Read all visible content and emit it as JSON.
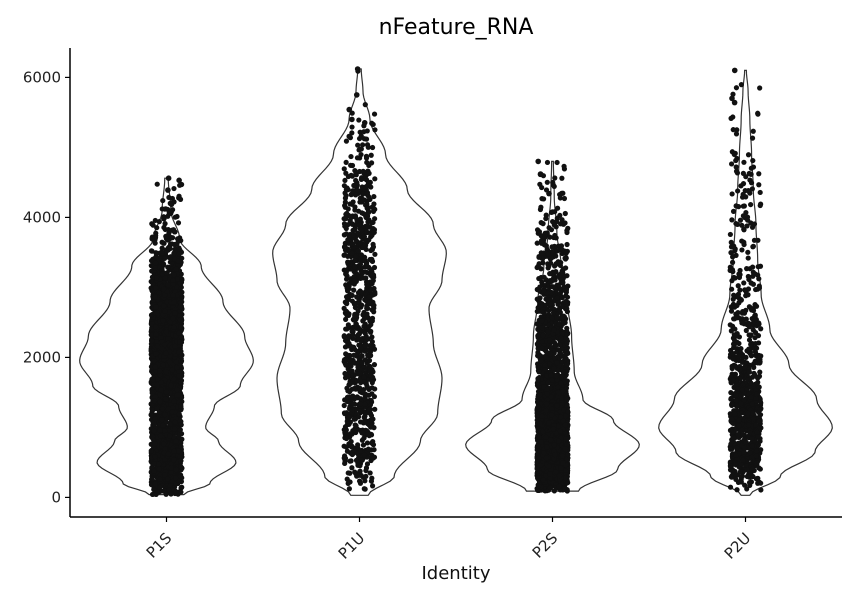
{
  "chart_data": {
    "type": "violin",
    "title": "nFeature_RNA",
    "xlabel": "Identity",
    "ylabel": "",
    "ylim": [
      -280,
      6420
    ],
    "y_ticks": [
      0,
      2000,
      4000,
      6000
    ],
    "y_tick_labels": [
      "0",
      "2000",
      "4000",
      "6000"
    ],
    "grid": false,
    "legend": "none",
    "colors": {
      "violin_stroke": "#333333",
      "point": "#111111",
      "axis": "#000000",
      "background": "#ffffff"
    },
    "categories": [
      "P1S",
      "P1U",
      "P2S",
      "P2U"
    ],
    "series": [
      {
        "category": "P1S",
        "range": [
          40,
          4560
        ],
        "density_profile": [
          [
            40,
            0.2
          ],
          [
            200,
            0.5
          ],
          [
            500,
            0.8
          ],
          [
            800,
            0.6
          ],
          [
            1000,
            0.45
          ],
          [
            1300,
            0.55
          ],
          [
            1600,
            0.85
          ],
          [
            1950,
            1.0
          ],
          [
            2300,
            0.9
          ],
          [
            2800,
            0.65
          ],
          [
            3300,
            0.4
          ],
          [
            3700,
            0.15
          ],
          [
            4100,
            0.05
          ],
          [
            4560,
            0.02
          ]
        ],
        "points": 2600,
        "outliers": [
          4560,
          4530,
          4390,
          4200
        ]
      },
      {
        "category": "P1U",
        "range": [
          30,
          6120
        ],
        "density_profile": [
          [
            30,
            0.1
          ],
          [
            300,
            0.4
          ],
          [
            800,
            0.7
          ],
          [
            1200,
            0.9
          ],
          [
            1700,
            0.95
          ],
          [
            2200,
            0.85
          ],
          [
            2700,
            0.8
          ],
          [
            3100,
            0.95
          ],
          [
            3500,
            1.0
          ],
          [
            3900,
            0.85
          ],
          [
            4400,
            0.55
          ],
          [
            4900,
            0.3
          ],
          [
            5400,
            0.12
          ],
          [
            5800,
            0.04
          ],
          [
            6120,
            0.02
          ]
        ],
        "points": 900,
        "outliers": [
          6120,
          5750,
          5540,
          5400
        ]
      },
      {
        "category": "P2S",
        "range": [
          90,
          4800
        ],
        "density_profile": [
          [
            90,
            0.3
          ],
          [
            400,
            0.75
          ],
          [
            750,
            1.0
          ],
          [
            1100,
            0.7
          ],
          [
            1400,
            0.35
          ],
          [
            1800,
            0.25
          ],
          [
            2300,
            0.22
          ],
          [
            2800,
            0.17
          ],
          [
            3300,
            0.1
          ],
          [
            3800,
            0.05
          ],
          [
            4300,
            0.02
          ],
          [
            4800,
            0.01
          ]
        ],
        "points": 2600,
        "outliers": [
          4800,
          4620,
          4340
        ]
      },
      {
        "category": "P2U",
        "range": [
          30,
          6100
        ],
        "density_profile": [
          [
            30,
            0.05
          ],
          [
            300,
            0.4
          ],
          [
            650,
            0.8
          ],
          [
            1000,
            1.0
          ],
          [
            1400,
            0.82
          ],
          [
            1900,
            0.5
          ],
          [
            2400,
            0.28
          ],
          [
            2900,
            0.18
          ],
          [
            3400,
            0.14
          ],
          [
            3900,
            0.12
          ],
          [
            4400,
            0.09
          ],
          [
            4900,
            0.07
          ],
          [
            5400,
            0.05
          ],
          [
            5800,
            0.03
          ],
          [
            6100,
            0.01
          ]
        ],
        "points": 900,
        "outliers": [
          6100,
          5700,
          5640
        ]
      }
    ]
  }
}
